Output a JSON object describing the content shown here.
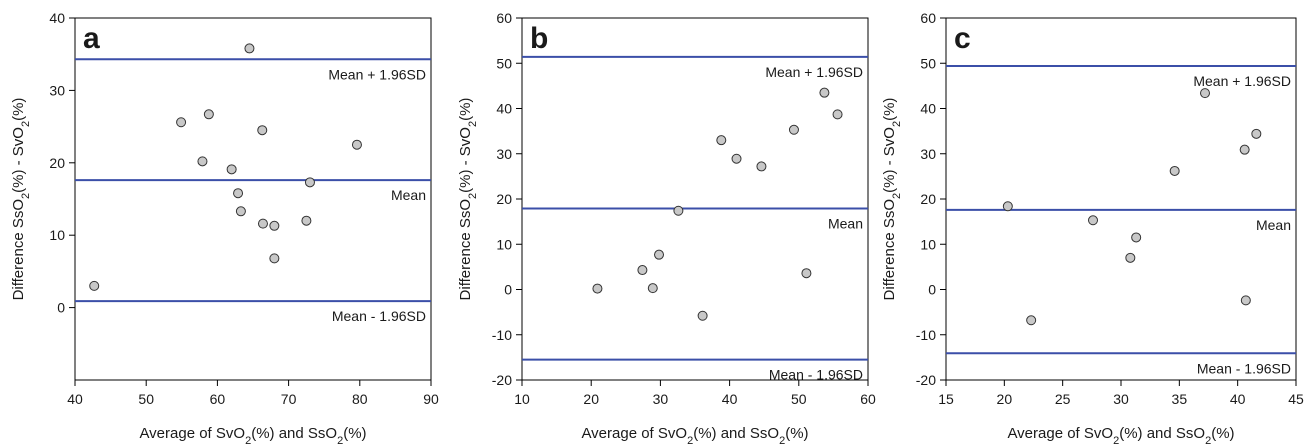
{
  "chart_data": [
    {
      "type": "scatter",
      "panel_label": "a",
      "xlabel": "Average of SvO2(%) and SsO2(%)",
      "ylabel": "Difference SsO2(%) - SvO2(%)",
      "xlim": [
        40,
        90
      ],
      "ylim": [
        -10,
        40
      ],
      "xticks": [
        40,
        50,
        60,
        70,
        80,
        90
      ],
      "yticks": [
        0,
        10,
        20,
        30,
        40
      ],
      "points": [
        {
          "x": 42.7,
          "y": 3.0
        },
        {
          "x": 54.9,
          "y": 25.6
        },
        {
          "x": 57.9,
          "y": 20.2
        },
        {
          "x": 58.8,
          "y": 26.7
        },
        {
          "x": 62.0,
          "y": 19.1
        },
        {
          "x": 62.9,
          "y": 15.8
        },
        {
          "x": 63.3,
          "y": 13.3
        },
        {
          "x": 64.5,
          "y": 35.8
        },
        {
          "x": 66.3,
          "y": 24.5
        },
        {
          "x": 66.4,
          "y": 11.6
        },
        {
          "x": 68.0,
          "y": 11.3
        },
        {
          "x": 68.0,
          "y": 6.8
        },
        {
          "x": 72.5,
          "y": 12.0
        },
        {
          "x": 73.0,
          "y": 17.3
        },
        {
          "x": 79.6,
          "y": 22.5
        }
      ],
      "reference_lines": [
        {
          "label": "Mean + 1.96SD",
          "value": 34.3,
          "label_pos": "below"
        },
        {
          "label": "Mean",
          "value": 17.6,
          "label_pos": "below"
        },
        {
          "label": "Mean - 1.96SD",
          "value": 0.9,
          "label_pos": "below"
        }
      ]
    },
    {
      "type": "scatter",
      "panel_label": "b",
      "xlabel": "Average of SvO2(%) and SsO2(%)",
      "ylabel": "Difference SsO2(%) - SvO2(%)",
      "xlim": [
        10,
        60
      ],
      "ylim": [
        -20,
        60
      ],
      "xticks": [
        10,
        20,
        30,
        40,
        50,
        60
      ],
      "yticks": [
        -20,
        -10,
        0,
        10,
        20,
        30,
        40,
        50,
        60
      ],
      "points": [
        {
          "x": 20.9,
          "y": 0.2
        },
        {
          "x": 27.4,
          "y": 4.3
        },
        {
          "x": 28.9,
          "y": 0.3
        },
        {
          "x": 29.8,
          "y": 7.7
        },
        {
          "x": 32.6,
          "y": 17.4
        },
        {
          "x": 36.1,
          "y": -5.8
        },
        {
          "x": 38.8,
          "y": 33.0
        },
        {
          "x": 41.0,
          "y": 28.9
        },
        {
          "x": 44.6,
          "y": 27.2
        },
        {
          "x": 49.3,
          "y": 35.3
        },
        {
          "x": 51.1,
          "y": 3.6
        },
        {
          "x": 53.7,
          "y": 43.5
        },
        {
          "x": 55.6,
          "y": 38.7
        }
      ],
      "reference_lines": [
        {
          "label": "Mean + 1.96SD",
          "value": 51.4,
          "label_pos": "below"
        },
        {
          "label": "Mean",
          "value": 17.9,
          "label_pos": "below"
        },
        {
          "label": "Mean - 1.96SD",
          "value": -15.5,
          "label_pos": "below"
        }
      ]
    },
    {
      "type": "scatter",
      "panel_label": "c",
      "xlabel": "Average of SvO2(%) and SsO2(%)",
      "ylabel": "Difference SsO2(%) - SvO2(%)",
      "xlim": [
        15,
        45
      ],
      "ylim": [
        -20,
        60
      ],
      "xticks": [
        15,
        20,
        25,
        30,
        35,
        40,
        45
      ],
      "yticks": [
        -20,
        -10,
        0,
        10,
        20,
        30,
        40,
        50,
        60
      ],
      "points": [
        {
          "x": 20.3,
          "y": 18.4
        },
        {
          "x": 22.3,
          "y": -6.8
        },
        {
          "x": 27.6,
          "y": 15.3
        },
        {
          "x": 30.8,
          "y": 7.0
        },
        {
          "x": 31.3,
          "y": 11.5
        },
        {
          "x": 34.6,
          "y": 26.2
        },
        {
          "x": 37.2,
          "y": 43.4
        },
        {
          "x": 40.6,
          "y": 30.9
        },
        {
          "x": 40.7,
          "y": -2.4
        },
        {
          "x": 41.6,
          "y": 34.4
        }
      ],
      "reference_lines": [
        {
          "label": "Mean + 1.96SD",
          "value": 49.4,
          "label_pos": "below"
        },
        {
          "label": "Mean",
          "value": 17.6,
          "label_pos": "below"
        },
        {
          "label": "Mean - 1.96SD",
          "value": -14.1,
          "label_pos": "below"
        }
      ]
    }
  ],
  "colors": {
    "reference_line": "#3b4fa8",
    "point_fill": "#c8c8c8",
    "point_stroke": "#333333"
  }
}
